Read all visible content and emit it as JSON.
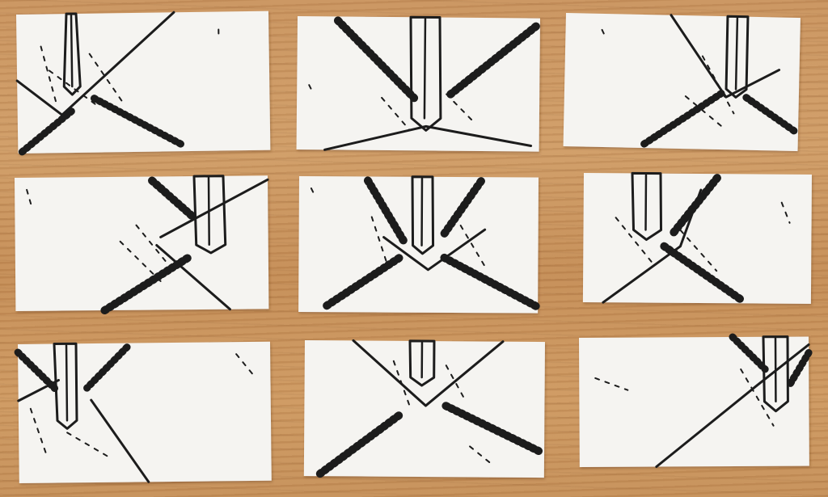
{
  "scene": {
    "description_kind": "photo-of-cards",
    "colors": {
      "table": "#c9935e",
      "card": "#f5f4f1",
      "ink": "#1c1c1c"
    },
    "cards": [
      {
        "row": 1,
        "col": 1,
        "motif": "x-crossing-with-sword-left"
      },
      {
        "row": 1,
        "col": 2,
        "motif": "x-crossing-with-sword-center"
      },
      {
        "row": 1,
        "col": 3,
        "motif": "x-crossing-with-sword-right"
      },
      {
        "row": 2,
        "col": 1,
        "motif": "x-crossing-with-sword-right"
      },
      {
        "row": 2,
        "col": 2,
        "motif": "x-crossing-with-sword-center"
      },
      {
        "row": 2,
        "col": 3,
        "motif": "x-crossing-with-sword-left"
      },
      {
        "row": 3,
        "col": 1,
        "motif": "x-crossing-with-sword-left"
      },
      {
        "row": 3,
        "col": 2,
        "motif": "x-crossing-with-sword-center"
      },
      {
        "row": 3,
        "col": 3,
        "motif": "x-crossing-with-sword-right"
      }
    ]
  }
}
